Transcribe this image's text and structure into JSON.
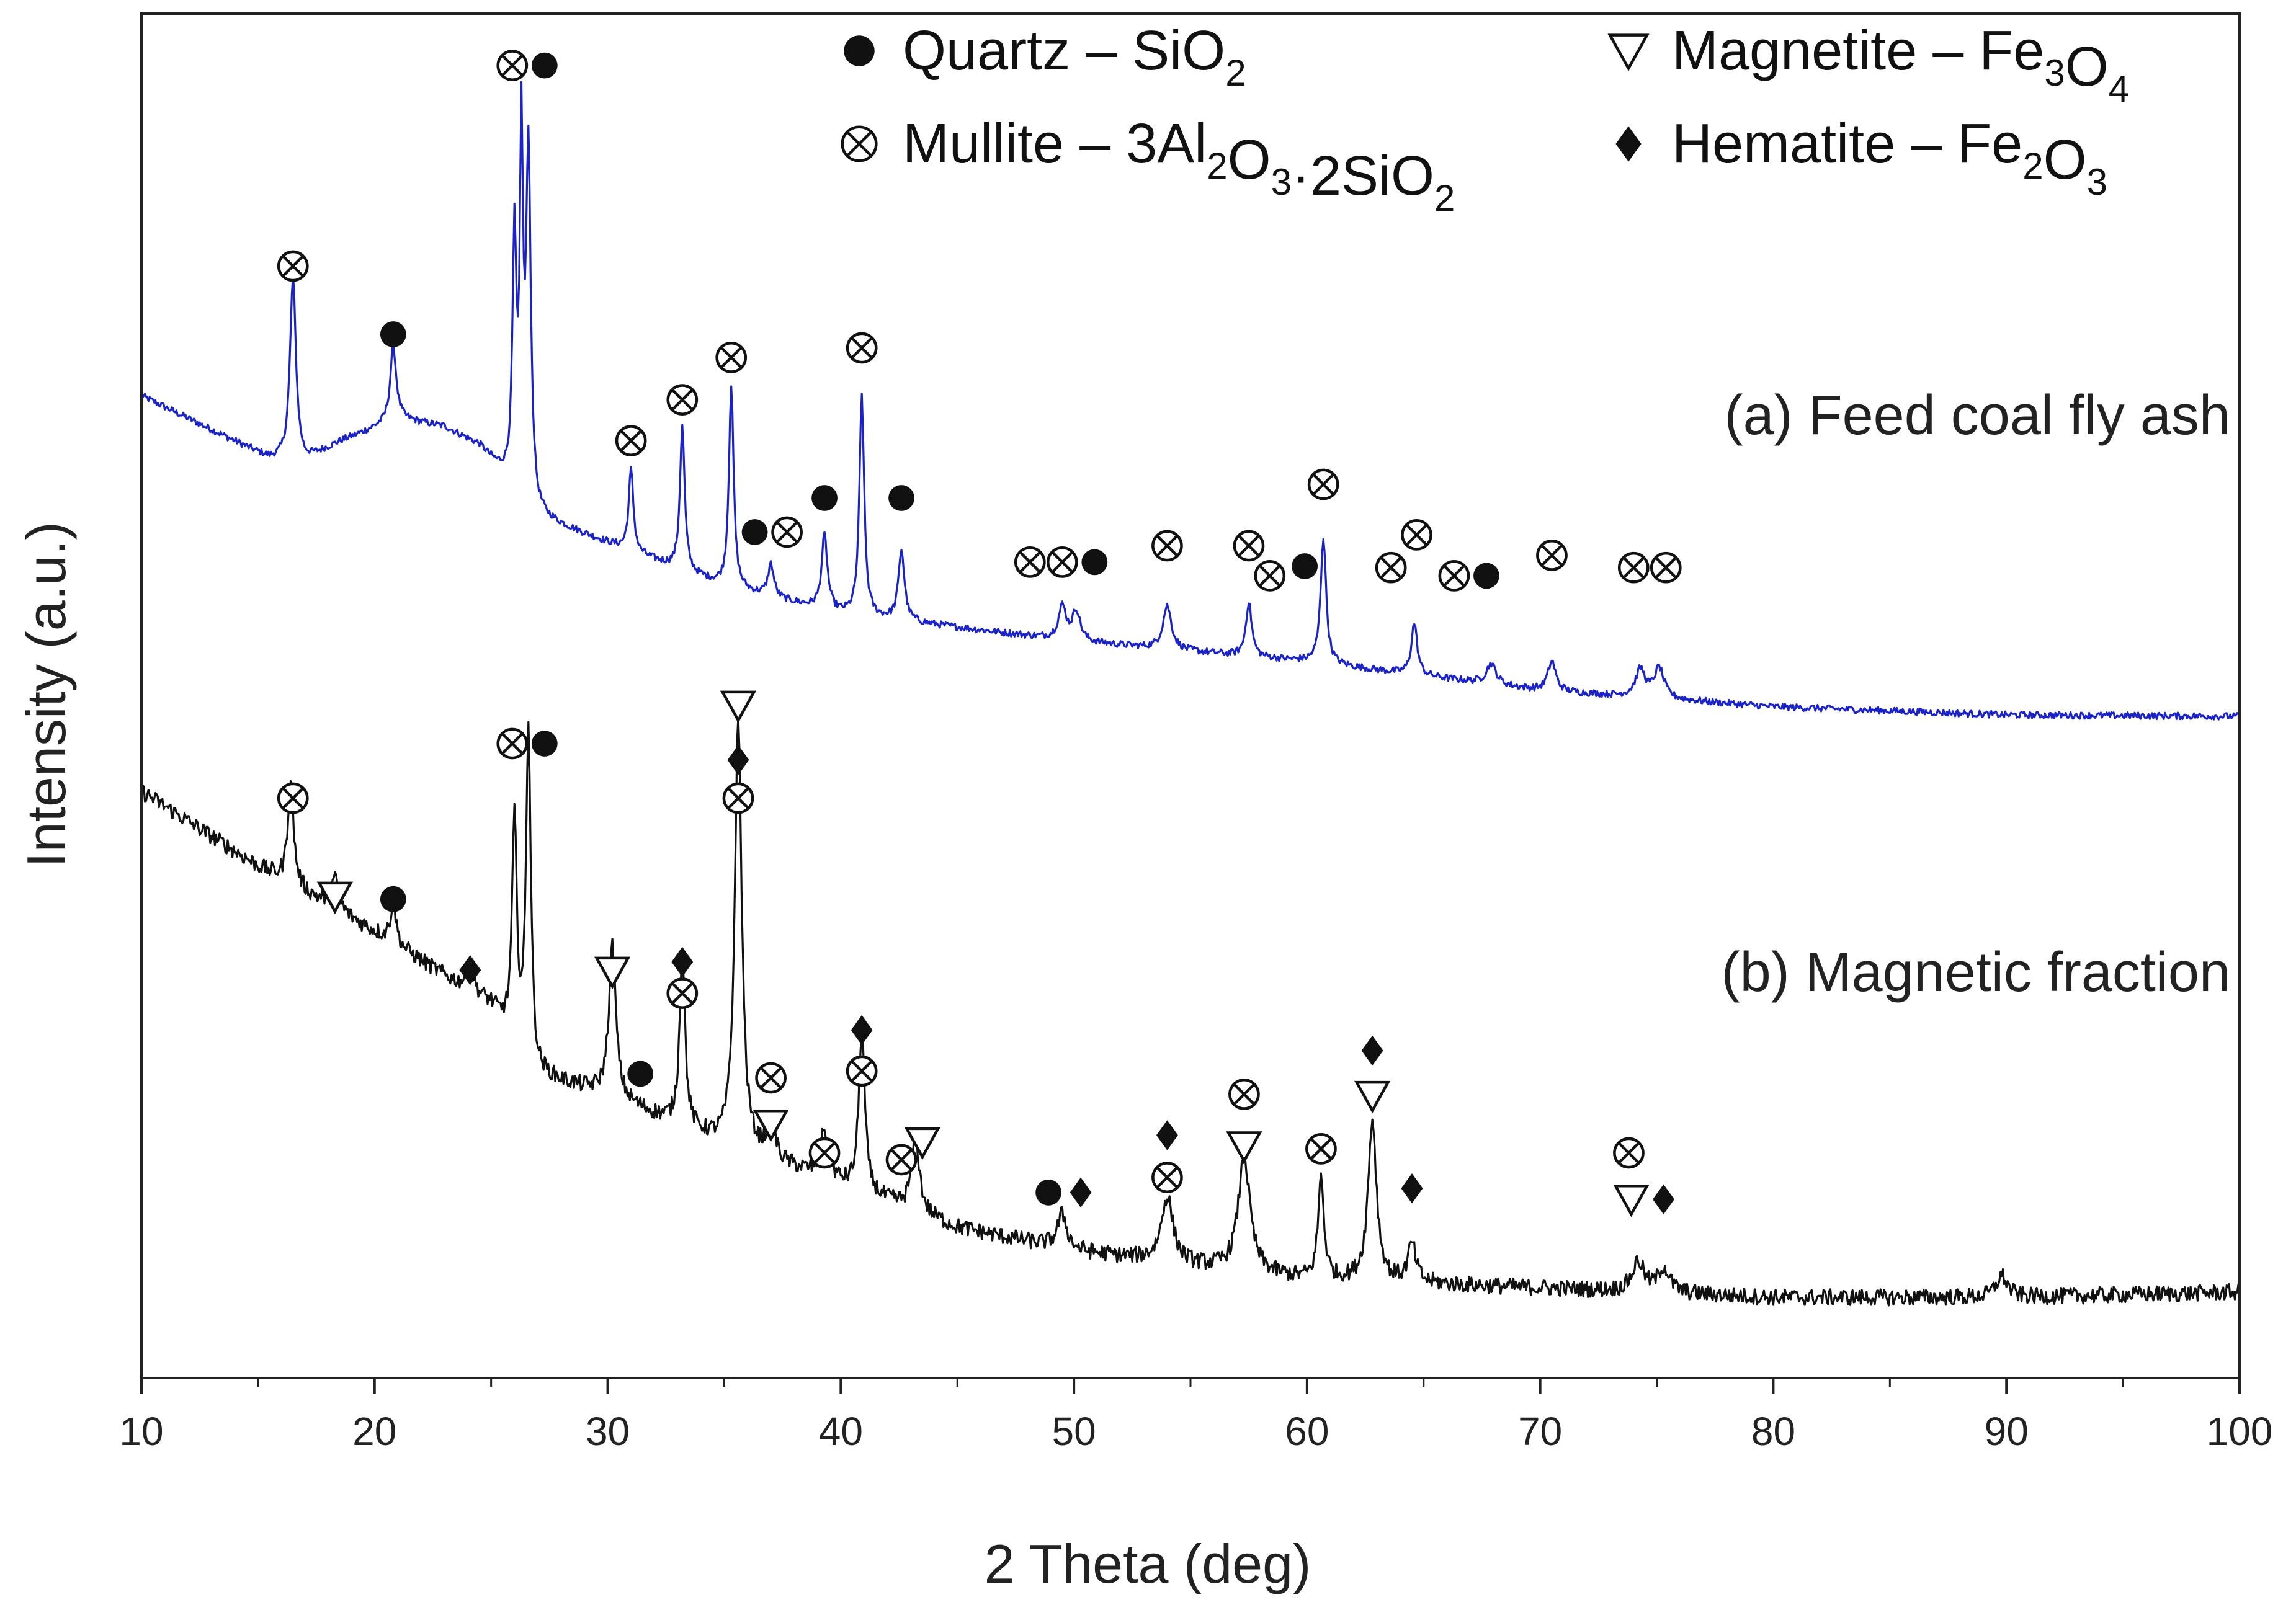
{
  "chart_data": {
    "type": "line",
    "title": "",
    "xlabel": "2 Theta (deg)",
    "ylabel": "Intensity (a.u.)",
    "xlim": [
      10,
      100
    ],
    "ylim": [
      0,
      100
    ],
    "x_ticks": [
      "10",
      "20",
      "30",
      "40",
      "50",
      "60",
      "70",
      "80",
      "90",
      "100"
    ],
    "grid": false,
    "colors": {
      "feed": "#1b23c6",
      "magnetic": "#111111",
      "marker": "#111111"
    },
    "legend": {
      "placement": "top-right",
      "entries": [
        {
          "symbol": "circle-filled",
          "name": "Quartz",
          "formula": [
            "SiO",
            "2"
          ]
        },
        {
          "symbol": "circle-cross",
          "name": "Mullite",
          "formula": [
            "3Al",
            "2",
            "O",
            "3",
            "·2SiO",
            "2"
          ]
        },
        {
          "symbol": "triangle-down",
          "name": "Magnetite",
          "formula": [
            "Fe",
            "3",
            "O",
            "4"
          ]
        },
        {
          "symbol": "diamond",
          "name": "Hematite",
          "formula": [
            "Fe",
            "2",
            "O",
            "3"
          ]
        }
      ],
      "dash": "–"
    },
    "series": [
      {
        "id": "feed",
        "name": "(a) Feed coal fly ash",
        "baseline": [
          [
            10,
            72
          ],
          [
            13,
            69.5
          ],
          [
            15.5,
            67.4
          ],
          [
            17,
            67.2
          ],
          [
            18.5,
            68.6
          ],
          [
            21,
            70.3
          ],
          [
            23,
            69.7
          ],
          [
            24.5,
            68.3
          ],
          [
            27,
            63.1
          ],
          [
            30,
            61.2
          ],
          [
            35,
            58
          ],
          [
            40,
            56
          ],
          [
            50,
            54
          ],
          [
            60,
            52.5
          ],
          [
            70,
            50.4
          ],
          [
            80,
            49.2
          ],
          [
            90,
            48.6
          ],
          [
            100,
            48.5
          ]
        ],
        "peaks": [
          [
            16.5,
            13.5,
            0.15
          ],
          [
            20.8,
            5.5,
            0.15
          ],
          [
            26.0,
            18,
            0.1
          ],
          [
            26.3,
            25,
            0.08
          ],
          [
            26.6,
            25.5,
            0.12
          ],
          [
            31.0,
            6,
            0.12
          ],
          [
            33.2,
            10.5,
            0.12
          ],
          [
            35.3,
            14.8,
            0.12
          ],
          [
            37.0,
            2.4,
            0.15
          ],
          [
            39.3,
            5.4,
            0.15
          ],
          [
            40.9,
            16.2,
            0.12
          ],
          [
            42.6,
            5.2,
            0.15
          ],
          [
            49.5,
            2.4,
            0.2
          ],
          [
            50.1,
            2.2,
            0.2
          ],
          [
            54.0,
            3.2,
            0.22
          ],
          [
            57.5,
            4,
            0.15
          ],
          [
            60.7,
            9.3,
            0.14
          ],
          [
            64.6,
            3.8,
            0.15
          ],
          [
            67.9,
            1.5,
            0.25
          ],
          [
            70.5,
            2.2,
            0.2
          ],
          [
            74.3,
            2,
            0.25
          ],
          [
            75.1,
            2.2,
            0.25
          ]
        ],
        "noise": 0.25
      },
      {
        "id": "magnetic",
        "name": "(b) Magnetic fraction",
        "baseline": [
          [
            10,
            43
          ],
          [
            15,
            37.5
          ],
          [
            20,
            32.7
          ],
          [
            25,
            27.3
          ],
          [
            27,
            22.2
          ],
          [
            30,
            20.7
          ],
          [
            35,
            17
          ],
          [
            40,
            14.2
          ],
          [
            45,
            11
          ],
          [
            50,
            9.3
          ],
          [
            60,
            7.2
          ],
          [
            70,
            6.6
          ],
          [
            80,
            5.9
          ],
          [
            90,
            5.9
          ],
          [
            100,
            6.3
          ]
        ],
        "peaks": [
          [
            16.4,
            7.6,
            0.15
          ],
          [
            18.3,
            2.2,
            0.2
          ],
          [
            20.8,
            3,
            0.15
          ],
          [
            24.1,
            1.8,
            0.2
          ],
          [
            26.0,
            16,
            0.12
          ],
          [
            26.6,
            24.5,
            0.12
          ],
          [
            30.2,
            11,
            0.18
          ],
          [
            33.2,
            12.8,
            0.14
          ],
          [
            35.6,
            31.5,
            0.18
          ],
          [
            37.0,
            2.8,
            0.2
          ],
          [
            39.3,
            3.5,
            0.2
          ],
          [
            40.9,
            12,
            0.15
          ],
          [
            43.2,
            5.6,
            0.2
          ],
          [
            49.5,
            2.5,
            0.25
          ],
          [
            54.0,
            4.8,
            0.3
          ],
          [
            57.3,
            8.4,
            0.3
          ],
          [
            60.6,
            7.5,
            0.15
          ],
          [
            62.8,
            11.8,
            0.22
          ],
          [
            64.5,
            2.8,
            0.2
          ],
          [
            74.2,
            2.2,
            0.3
          ],
          [
            75.3,
            1.8,
            0.3
          ],
          [
            89.8,
            1.6,
            0.3
          ]
        ],
        "noise": 0.6
      }
    ],
    "annotations": [
      {
        "x": 16.5,
        "y": 81.5,
        "symbols": [
          "circle-cross"
        ]
      },
      {
        "x": 20.8,
        "y": 76.5,
        "symbols": [
          "circle-filled"
        ]
      },
      {
        "x": 26.6,
        "y": 96.2,
        "symbols": [
          "circle-cross",
          "circle-filled"
        ]
      },
      {
        "x": 31.0,
        "y": 68.7,
        "symbols": [
          "circle-cross"
        ]
      },
      {
        "x": 33.2,
        "y": 71.7,
        "symbols": [
          "circle-cross"
        ]
      },
      {
        "x": 35.3,
        "y": 74.8,
        "symbols": [
          "circle-cross"
        ]
      },
      {
        "x": 37.0,
        "y": 62,
        "symbols": [
          "circle-filled",
          "circle-cross"
        ]
      },
      {
        "x": 39.3,
        "y": 64.5,
        "symbols": [
          "circle-filled"
        ]
      },
      {
        "x": 40.9,
        "y": 75.5,
        "symbols": [
          "circle-cross"
        ]
      },
      {
        "x": 42.6,
        "y": 64.5,
        "symbols": [
          "circle-filled"
        ]
      },
      {
        "x": 49.5,
        "y": 59.8,
        "symbols": [
          "circle-cross",
          "circle-cross",
          "circle-filled"
        ]
      },
      {
        "x": 54.0,
        "y": 61,
        "symbols": [
          "circle-cross"
        ]
      },
      {
        "x": 57.5,
        "y": 61,
        "symbols": [
          "circle-cross"
        ]
      },
      {
        "x": 58.4,
        "y": 58.8,
        "symbols": [
          "circle-cross"
        ]
      },
      {
        "x": 59.9,
        "y": 59.5,
        "symbols": [
          "circle-filled"
        ]
      },
      {
        "x": 60.7,
        "y": 65.5,
        "symbols": [
          "circle-cross"
        ]
      },
      {
        "x": 63.6,
        "y": 59.4,
        "symbols": [
          "circle-cross"
        ]
      },
      {
        "x": 64.7,
        "y": 61.8,
        "symbols": [
          "circle-cross"
        ]
      },
      {
        "x": 67.0,
        "y": 58.8,
        "symbols": [
          "circle-cross",
          "circle-filled"
        ]
      },
      {
        "x": 70.5,
        "y": 60.3,
        "symbols": [
          "circle-cross"
        ]
      },
      {
        "x": 74.7,
        "y": 59.4,
        "symbols": [
          "circle-cross",
          "circle-cross"
        ]
      },
      {
        "x": 16.5,
        "y": 42.5,
        "symbols": [
          "circle-cross"
        ]
      },
      {
        "x": 18.3,
        "y": 35.3,
        "symbols": [
          "triangle-down"
        ]
      },
      {
        "x": 20.8,
        "y": 35.1,
        "symbols": [
          "circle-filled"
        ]
      },
      {
        "x": 24.1,
        "y": 29.9,
        "symbols": [
          "diamond"
        ]
      },
      {
        "x": 26.6,
        "y": 46.5,
        "symbols": [
          "circle-cross",
          "circle-filled"
        ]
      },
      {
        "x": 30.2,
        "y": 29.8,
        "symbols": [
          "triangle-down"
        ]
      },
      {
        "x": 33.2,
        "y": 28.2,
        "symbols": [
          "circle-cross"
        ]
      },
      {
        "x": 33.2,
        "y": 30.5,
        "symbols": [
          "diamond"
        ]
      },
      {
        "x": 31.4,
        "y": 22.3,
        "symbols": [
          "circle-filled"
        ]
      },
      {
        "x": 35.6,
        "y": 42.5,
        "symbols": [
          "circle-cross"
        ]
      },
      {
        "x": 35.6,
        "y": 45.3,
        "symbols": [
          "diamond"
        ]
      },
      {
        "x": 35.6,
        "y": 49.3,
        "symbols": [
          "triangle-down"
        ]
      },
      {
        "x": 37.0,
        "y": 22,
        "symbols": [
          "circle-cross"
        ]
      },
      {
        "x": 37.0,
        "y": 18.6,
        "symbols": [
          "triangle-down"
        ]
      },
      {
        "x": 39.3,
        "y": 16.5,
        "symbols": [
          "circle-cross"
        ]
      },
      {
        "x": 40.9,
        "y": 22.5,
        "symbols": [
          "circle-cross"
        ]
      },
      {
        "x": 40.9,
        "y": 25.5,
        "symbols": [
          "diamond"
        ]
      },
      {
        "x": 42.6,
        "y": 16,
        "symbols": [
          "circle-cross"
        ]
      },
      {
        "x": 43.5,
        "y": 17.3,
        "symbols": [
          "triangle-down"
        ]
      },
      {
        "x": 49.6,
        "y": 13.6,
        "symbols": [
          "circle-filled",
          "diamond"
        ]
      },
      {
        "x": 54.0,
        "y": 14.7,
        "symbols": [
          "circle-cross"
        ]
      },
      {
        "x": 54.0,
        "y": 17.8,
        "symbols": [
          "diamond"
        ]
      },
      {
        "x": 57.3,
        "y": 20.8,
        "symbols": [
          "circle-cross"
        ]
      },
      {
        "x": 57.3,
        "y": 17,
        "symbols": [
          "triangle-down"
        ]
      },
      {
        "x": 60.6,
        "y": 16.8,
        "symbols": [
          "circle-cross"
        ]
      },
      {
        "x": 62.8,
        "y": 24,
        "symbols": [
          "diamond"
        ]
      },
      {
        "x": 62.8,
        "y": 20.7,
        "symbols": [
          "triangle-down"
        ]
      },
      {
        "x": 64.5,
        "y": 13.9,
        "symbols": [
          "diamond"
        ]
      },
      {
        "x": 73.8,
        "y": 16.5,
        "symbols": [
          "circle-cross"
        ]
      },
      {
        "x": 74.6,
        "y": 13.1,
        "symbols": [
          "triangle-down",
          "diamond"
        ]
      }
    ]
  }
}
